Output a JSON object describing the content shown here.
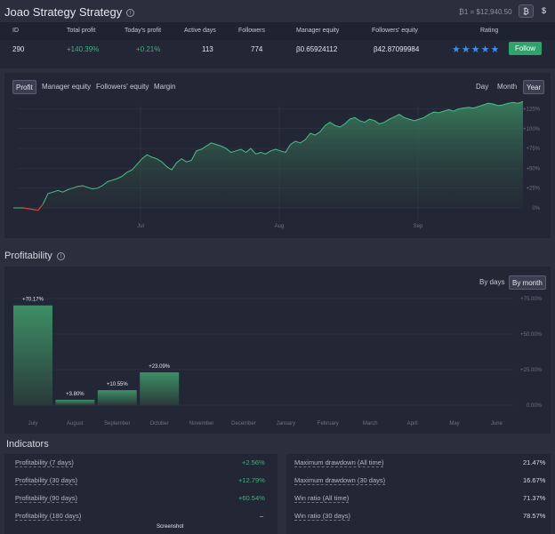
{
  "header": {
    "title": "Joao Strategy Strategy",
    "rate": "₿1 = $12,940.50",
    "btc_button": "₿",
    "usd_button": "$"
  },
  "stats": {
    "headers": [
      "ID",
      "Total profit",
      "Today's profit",
      "Active days",
      "Followers",
      "Manager equity",
      "Followers' equity",
      "Rating"
    ],
    "values": [
      "290",
      "+140.39%",
      "+0.21%",
      "113",
      "774",
      "β0.65924112",
      "β42.87099984"
    ],
    "rating_stars": "★★★★★",
    "rating": 5,
    "follow_label": "Follow"
  },
  "equity_tabs": [
    "Profit",
    "Manager equity",
    "Followers' equity",
    "Margin"
  ],
  "period_tabs": [
    "Day",
    "Month",
    "Year"
  ],
  "chart_data": [
    {
      "type": "area",
      "x_ticks": [
        "Jul",
        "Aug",
        "Sep"
      ],
      "y_ticks": [
        "0%",
        "+25%",
        "+50%",
        "+75%",
        "+100%",
        "+125%"
      ],
      "ylim": [
        0,
        130
      ],
      "values": [
        0,
        0,
        0,
        -1,
        -2,
        -3,
        5,
        18,
        20,
        22,
        20,
        23,
        25,
        27,
        28,
        26,
        24,
        25,
        28,
        33,
        35,
        37,
        40,
        45,
        48,
        55,
        62,
        67,
        64,
        62,
        58,
        52,
        48,
        57,
        62,
        58,
        60,
        72,
        74,
        78,
        82,
        80,
        78,
        75,
        70,
        72,
        74,
        70,
        75,
        68,
        70,
        68,
        72,
        74,
        72,
        70,
        80,
        84,
        82,
        86,
        94,
        92,
        96,
        104,
        108,
        104,
        102,
        106,
        112,
        114,
        110,
        108,
        112,
        110,
        106,
        108,
        112,
        115,
        118,
        114,
        112,
        110,
        112,
        114,
        118,
        121,
        120,
        122,
        124,
        122,
        125,
        126,
        127,
        126,
        128,
        130,
        132,
        131,
        129,
        130,
        132,
        133,
        132,
        134
      ],
      "highlight_color": "#e23a3a",
      "grid": true
    },
    {
      "type": "bar",
      "categories": [
        "July",
        "August",
        "September",
        "October",
        "November",
        "December",
        "January",
        "February",
        "March",
        "April",
        "May",
        "June"
      ],
      "values": [
        70.17,
        3.8,
        10.55,
        23.09,
        null,
        null,
        null,
        null,
        null,
        null,
        null,
        null
      ],
      "labels": [
        "+70.17%",
        "+3.80%",
        "+10.55%",
        "+23.09%"
      ],
      "y_ticks": [
        "0.00%",
        "+25.00%",
        "+50.00%",
        "+75.00%"
      ],
      "ylim": [
        0,
        75
      ]
    }
  ],
  "profitability": {
    "title": "Profitability",
    "tabs": [
      "By days",
      "By month"
    ]
  },
  "indicators": {
    "title": "Indicators",
    "left": [
      {
        "label": "Profitability (7 days)",
        "value": "+2.56%"
      },
      {
        "label": "Profitability (30 days)",
        "value": "+12.79%"
      },
      {
        "label": "Profitability (90 days)",
        "value": "+60.54%"
      },
      {
        "label": "Profitability (180 days)",
        "value": "–"
      }
    ],
    "right": [
      {
        "label": "Maximum drawdown (All time)",
        "value": "21.47%"
      },
      {
        "label": "Maximum drawdown (30 days)",
        "value": "16.67%"
      },
      {
        "label": "Win ratio (All time)",
        "value": "71.37%"
      },
      {
        "label": "Win ratio (30 days)",
        "value": "78.57%"
      }
    ]
  },
  "footer_label": "Screenshot",
  "colors": {
    "accent": "#2fa36b",
    "positive": "#3fb37b",
    "star": "#3b8fe6",
    "negative": "#e23a3a"
  }
}
